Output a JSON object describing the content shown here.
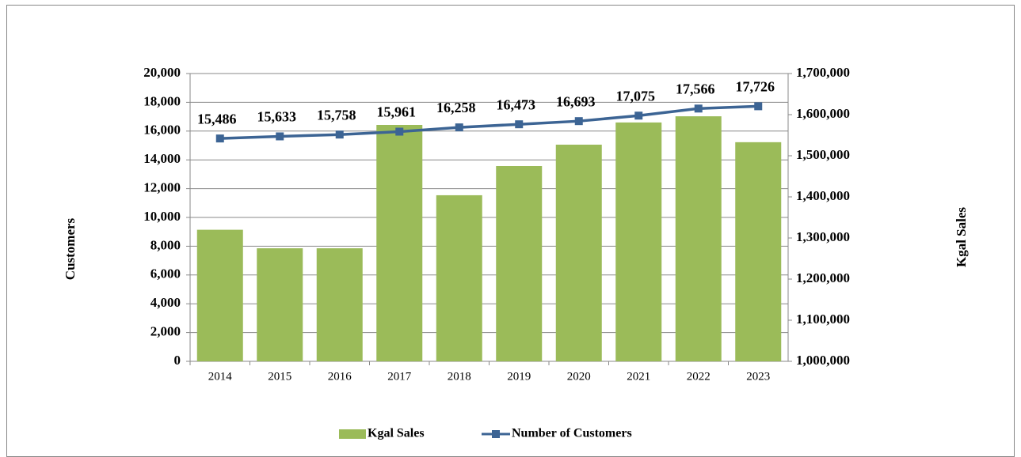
{
  "chart_data": {
    "type": "bar",
    "y_label": "Customers",
    "y2_label": "Kgal Sales",
    "categories": [
      "2014",
      "2015",
      "2016",
      "2017",
      "2018",
      "2019",
      "2020",
      "2021",
      "2022",
      "2023"
    ],
    "series": [
      {
        "name": "Kgal Sales",
        "type": "bar",
        "axis": "y2",
        "color": "#9bbb59",
        "values": [
          1320000,
          1275000,
          1275000,
          1575000,
          1404000,
          1475000,
          1527000,
          1581000,
          1596000,
          1533000
        ]
      },
      {
        "name": "Number of Customers",
        "type": "line",
        "axis": "y",
        "color": "#3c6494",
        "values": [
          15486,
          15633,
          15758,
          15961,
          16258,
          16473,
          16693,
          17075,
          17566,
          17726
        ],
        "value_labels": [
          "15,486",
          "15,633",
          "15,758",
          "15,961",
          "16,258",
          "16,473",
          "16,693",
          "17,075",
          "17,566",
          "17,726"
        ]
      }
    ],
    "ylim": [
      0,
      20000
    ],
    "yticks": [
      0,
      {
        "value": 2000,
        "label": "2,000"
      },
      {
        "value": 4000,
        "label": "4,000"
      },
      {
        "value": 6000,
        "label": "6,000"
      },
      {
        "value": 8000,
        "label": "8,000"
      },
      {
        "value": 10000,
        "label": "10,000"
      },
      {
        "value": 12000,
        "label": "12,000"
      },
      {
        "value": 14000,
        "label": "14,000"
      },
      {
        "value": 16000,
        "label": "16,000"
      },
      {
        "value": 18000,
        "label": "18,000"
      },
      {
        "value": 20000,
        "label": "20,000"
      }
    ],
    "y2lim": [
      1000000,
      1700000
    ],
    "y2ticks": [
      {
        "value": 1000000,
        "label": "1,000,000"
      },
      {
        "value": 1100000,
        "label": "1,100,000"
      },
      {
        "value": 1200000,
        "label": "1,200,000"
      },
      {
        "value": 1300000,
        "label": "1,300,000"
      },
      {
        "value": 1400000,
        "label": "1,400,000"
      },
      {
        "value": 1500000,
        "label": "1,500,000"
      },
      {
        "value": 1600000,
        "label": "1,600,000"
      },
      {
        "value": 1700000,
        "label": "1,700,000"
      }
    ],
    "grid": true,
    "legend": "bottom"
  }
}
